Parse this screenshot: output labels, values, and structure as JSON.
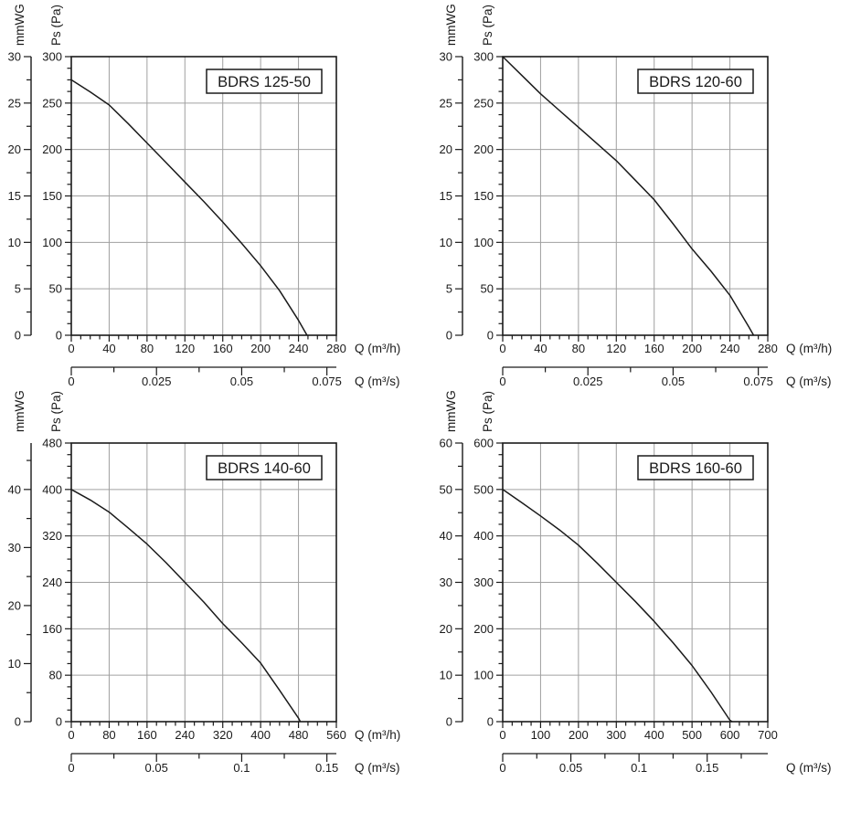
{
  "styles": {
    "ink": "#1a1a1a",
    "grid": "#a0a0a0",
    "background": "#ffffff",
    "title_box_fill": "#ffffff"
  },
  "chart_data": [
    {
      "type": "line",
      "title": "BDRS 125-50",
      "y2_label": "mmWG",
      "y_label": "Ps (Pa)",
      "x_label": "Q (m³/h)",
      "x2_label": "Q (m³/s)",
      "x_range": [
        0,
        280
      ],
      "x_major": 40,
      "x_minor": 10,
      "x_ticks": [
        "0",
        "40",
        "80",
        "120",
        "160",
        "200",
        "240",
        "280"
      ],
      "y_range": [
        0,
        300
      ],
      "y_major": 50,
      "y_minor": 12.5,
      "y_ticks": [
        "0",
        "50",
        "100",
        "150",
        "200",
        "250",
        "300"
      ],
      "y2_major": 5,
      "y2_minor": 2.5,
      "y2_ticks": [
        "0",
        "5",
        "10",
        "15",
        "20",
        "25",
        "30"
      ],
      "x2_values": [
        0,
        0.025,
        0.05,
        0.075
      ],
      "x2_ticks": [
        "0",
        "0.025",
        "0.05",
        "0.075"
      ],
      "x2_mid": [
        0.0125,
        0.0375,
        0.0625
      ],
      "curve": [
        [
          0,
          275
        ],
        [
          20,
          262
        ],
        [
          40,
          248
        ],
        [
          60,
          228
        ],
        [
          80,
          207
        ],
        [
          100,
          186
        ],
        [
          120,
          165
        ],
        [
          140,
          144
        ],
        [
          160,
          122
        ],
        [
          180,
          99
        ],
        [
          200,
          75
        ],
        [
          220,
          48
        ],
        [
          240,
          16
        ],
        [
          249,
          0
        ]
      ]
    },
    {
      "type": "line",
      "title": "BDRS 120-60",
      "y2_label": "mmWG",
      "y_label": "Ps (Pa)",
      "x_label": "Q (m³/h)",
      "x2_label": "Q (m³/s)",
      "x_range": [
        0,
        280
      ],
      "x_major": 40,
      "x_minor": 10,
      "x_ticks": [
        "0",
        "40",
        "80",
        "120",
        "160",
        "200",
        "240",
        "280"
      ],
      "y_range": [
        0,
        300
      ],
      "y_major": 50,
      "y_minor": 12.5,
      "y_ticks": [
        "0",
        "50",
        "100",
        "150",
        "200",
        "250",
        "300"
      ],
      "y2_major": 5,
      "y2_minor": 2.5,
      "y2_ticks": [
        "0",
        "5",
        "10",
        "15",
        "20",
        "25",
        "30"
      ],
      "x2_values": [
        0,
        0.025,
        0.05,
        0.075
      ],
      "x2_ticks": [
        "0",
        "0.025",
        "0.05",
        "0.075"
      ],
      "x2_mid": [
        0.0125,
        0.0375,
        0.0625
      ],
      "curve": [
        [
          0,
          300
        ],
        [
          20,
          280
        ],
        [
          40,
          260
        ],
        [
          60,
          242
        ],
        [
          80,
          224
        ],
        [
          100,
          206
        ],
        [
          120,
          188
        ],
        [
          140,
          167
        ],
        [
          160,
          146
        ],
        [
          180,
          120
        ],
        [
          200,
          93
        ],
        [
          220,
          69
        ],
        [
          240,
          43
        ],
        [
          260,
          9
        ],
        [
          265,
          0
        ]
      ]
    },
    {
      "type": "line",
      "title": "BDRS 140-60",
      "y2_label": "mmWG",
      "y_label": "Ps (Pa)",
      "x_label": "Q (m³/h)",
      "x2_label": "Q (m³/s)",
      "x_range": [
        0,
        560
      ],
      "x_major": 80,
      "x_minor": 20,
      "x_ticks": [
        "0",
        "80",
        "160",
        "240",
        "320",
        "400",
        "480",
        "560"
      ],
      "y_range": [
        0,
        480
      ],
      "y_major": 80,
      "y_minor": 20,
      "y_ticks": [
        "0",
        "80",
        "160",
        "240",
        "320",
        "400",
        "480"
      ],
      "y2_major": 10,
      "y2_minor": 5,
      "y2_ticks": [
        "0",
        "10",
        "20",
        "30",
        "40"
      ],
      "x2_values": [
        0,
        0.05,
        0.1,
        0.15
      ],
      "x2_ticks": [
        "0",
        "0.05",
        "0.1",
        "0.15"
      ],
      "x2_mid": [
        0.025,
        0.075,
        0.125
      ],
      "curve": [
        [
          0,
          400
        ],
        [
          40,
          382
        ],
        [
          80,
          361
        ],
        [
          120,
          334
        ],
        [
          160,
          306
        ],
        [
          200,
          274
        ],
        [
          240,
          240
        ],
        [
          280,
          206
        ],
        [
          320,
          169
        ],
        [
          360,
          136
        ],
        [
          400,
          101
        ],
        [
          440,
          54
        ],
        [
          480,
          6
        ],
        [
          484,
          0
        ]
      ]
    },
    {
      "type": "line",
      "title": "BDRS 160-60",
      "y2_label": "mmWG",
      "y_label": "Ps (Pa)",
      "x_label": null,
      "x2_label": "Q (m³/s)",
      "x_range": [
        0,
        700
      ],
      "x_major": 100,
      "x_minor": 25,
      "x_ticks": [
        "0",
        "100",
        "200",
        "300",
        "400",
        "500",
        "600",
        "700"
      ],
      "y_range": [
        0,
        600
      ],
      "y_major": 100,
      "y_minor": 25,
      "y_ticks": [
        "0",
        "100",
        "200",
        "300",
        "400",
        "500",
        "600"
      ],
      "y2_major": 10,
      "y2_minor": 5,
      "y2_ticks": [
        "0",
        "10",
        "20",
        "30",
        "40",
        "50",
        "60"
      ],
      "x2_values": [
        0,
        0.05,
        0.1,
        0.15
      ],
      "x2_ticks": [
        "0",
        "0.05",
        "0.1",
        "0.15"
      ],
      "x2_mid": [
        0.025,
        0.075,
        0.125,
        0.175
      ],
      "curve": [
        [
          0,
          500
        ],
        [
          50,
          472
        ],
        [
          100,
          443
        ],
        [
          150,
          413
        ],
        [
          200,
          380
        ],
        [
          250,
          341
        ],
        [
          300,
          300
        ],
        [
          350,
          259
        ],
        [
          400,
          216
        ],
        [
          450,
          170
        ],
        [
          500,
          121
        ],
        [
          550,
          64
        ],
        [
          600,
          3
        ],
        [
          606,
          0
        ]
      ]
    }
  ]
}
